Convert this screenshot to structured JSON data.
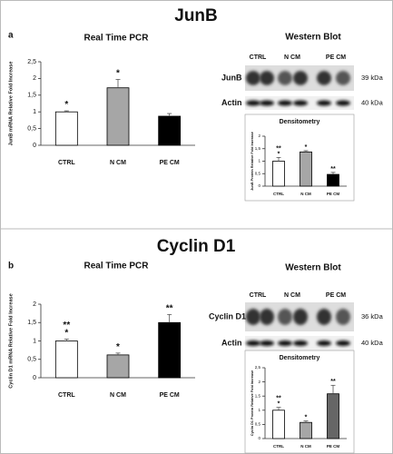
{
  "panels": [
    {
      "label": "a",
      "title": "JunB",
      "blot": {
        "title": "Western Blot",
        "lanes": [
          "CTRL",
          "N CM",
          "PE CM"
        ],
        "rows": [
          {
            "name": "JunB",
            "size": "39 kDa"
          },
          {
            "name": "Actin",
            "size": "40 kDa"
          }
        ]
      }
    },
    {
      "label": "b",
      "title": "Cyclin D1",
      "blot": {
        "title": "Western Blot",
        "lanes": [
          "CTRL",
          "N CM",
          "PE CM"
        ],
        "rows": [
          {
            "name": "Cyclin D1",
            "size": "36 kDa"
          },
          {
            "name": "Actin",
            "size": "40 kDa"
          }
        ]
      }
    }
  ],
  "chart_data": [
    {
      "type": "bar",
      "title": "Real Time PCR",
      "ylabel": "JunB mRNA Relative Fold Increase",
      "categories": [
        "CTRL",
        "N CM",
        "PE CM"
      ],
      "values": [
        1.0,
        1.72,
        0.87
      ],
      "errors": [
        0.03,
        0.25,
        0.08
      ],
      "colors": [
        "#ffffff",
        "#a6a6a6",
        "#000000"
      ],
      "significance": [
        [
          "*"
        ],
        [
          "*"
        ],
        []
      ],
      "ylim": [
        0,
        2.5
      ],
      "yticks": [
        0,
        {
          "value": 0.5,
          "label": "0,5"
        },
        1,
        {
          "value": 1.5,
          "label": "1,5"
        },
        2,
        {
          "value": 2.5,
          "label": "2,5"
        }
      ]
    },
    {
      "type": "bar",
      "title": "Densitometry",
      "ylabel": "JunB Protein Relative Fold Increase",
      "categories": [
        "CTRL",
        "N CM",
        "PE CM"
      ],
      "values": [
        1.0,
        1.37,
        0.47
      ],
      "errors": [
        0.15,
        0.05,
        0.08
      ],
      "colors": [
        "#ffffff",
        "#a6a6a6",
        "#000000"
      ],
      "significance": [
        [
          "**",
          "*"
        ],
        [
          "*"
        ],
        [
          "**"
        ]
      ],
      "ylim": [
        0,
        2
      ],
      "yticks": [
        0,
        {
          "value": 0.5,
          "label": "0,5"
        },
        1,
        {
          "value": 1.5,
          "label": "1,5"
        },
        2
      ]
    },
    {
      "type": "bar",
      "title": "Real Time PCR",
      "ylabel": "Cyclin D1 mRNA Relative Fold Increase",
      "categories": [
        "CTRL",
        "N CM",
        "PE CM"
      ],
      "values": [
        1.0,
        0.62,
        1.5
      ],
      "errors": [
        0.05,
        0.05,
        0.22
      ],
      "colors": [
        "#ffffff",
        "#a6a6a6",
        "#000000"
      ],
      "significance": [
        [
          "**",
          "*"
        ],
        [
          "*"
        ],
        [
          "**"
        ]
      ],
      "ylim": [
        0,
        2
      ],
      "yticks": [
        0,
        {
          "value": 0.5,
          "label": "0,5"
        },
        1,
        {
          "value": 1.5,
          "label": "1,5"
        },
        2
      ]
    },
    {
      "type": "bar",
      "title": "Densitometry",
      "ylabel": "Cyclin D1 Protein Relative Fold Increase",
      "categories": [
        "CTRL",
        "N CM",
        "PE CM"
      ],
      "values": [
        1.0,
        0.57,
        1.58
      ],
      "errors": [
        0.1,
        0.05,
        0.3
      ],
      "colors": [
        "#ffffff",
        "#a6a6a6",
        "#666666"
      ],
      "significance": [
        [
          "**",
          "*"
        ],
        [
          "*"
        ],
        [
          "**"
        ]
      ],
      "ylim": [
        0,
        2.5
      ],
      "yticks": [
        0,
        {
          "value": 0.5,
          "label": "0,5"
        },
        1,
        {
          "value": 1.5,
          "label": "1,5"
        },
        2,
        {
          "value": 2.5,
          "label": "2,5"
        }
      ]
    }
  ]
}
